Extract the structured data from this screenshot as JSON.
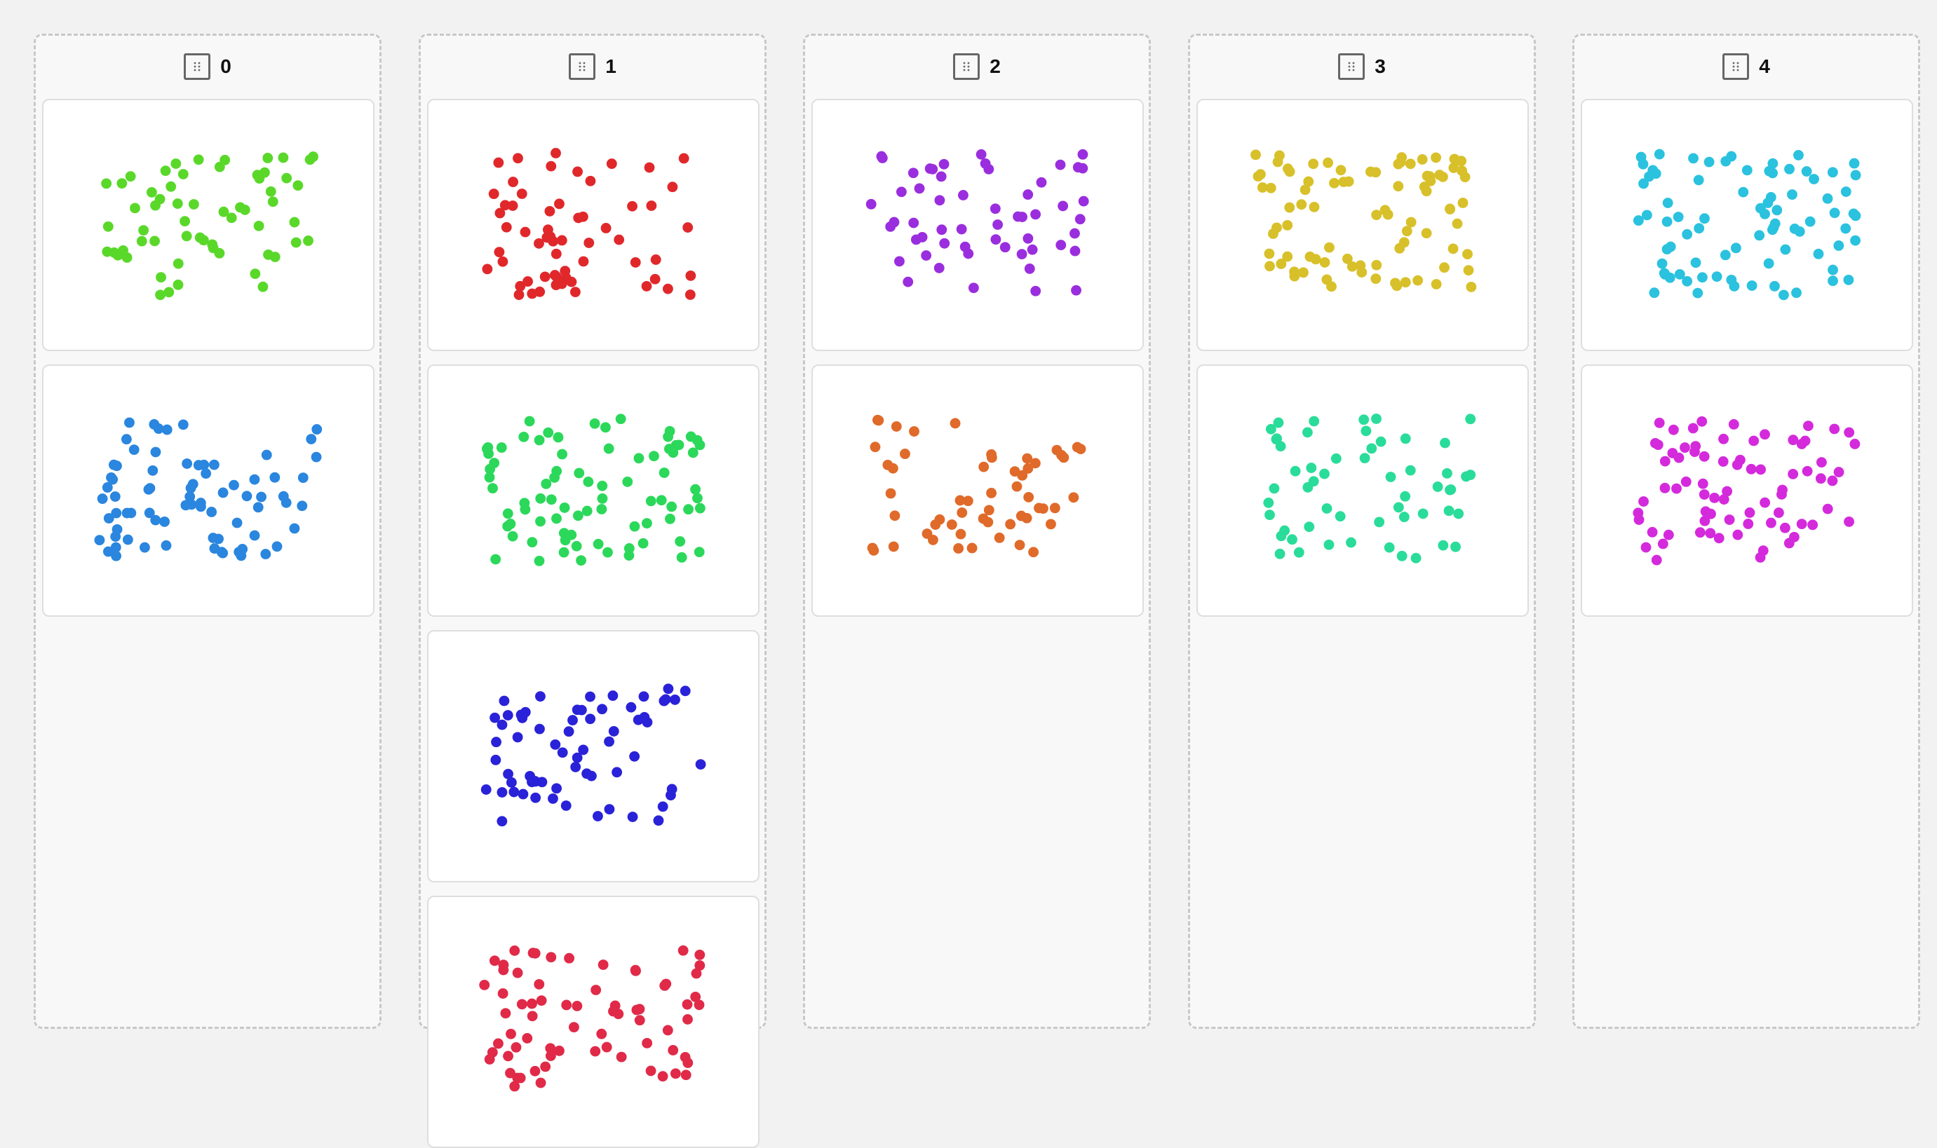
{
  "board": {
    "columns": [
      {
        "title": "0",
        "handle_icon": "drag-handle-icon",
        "cards": [
          {
            "color": "#5ad82a",
            "seed": 11,
            "count": 60
          },
          {
            "color": "#2a86de",
            "seed": 23,
            "count": 75
          }
        ]
      },
      {
        "title": "1",
        "handle_icon": "drag-handle-icon",
        "cards": [
          {
            "color": "#e0282b",
            "seed": 37,
            "count": 60
          },
          {
            "color": "#2bd85a",
            "seed": 41,
            "count": 80
          },
          {
            "color": "#2a22d8",
            "seed": 53,
            "count": 65
          },
          {
            "color": "#e02a48",
            "seed": 67,
            "count": 70
          }
        ]
      },
      {
        "title": "2",
        "handle_icon": "drag-handle-icon",
        "cards": [
          {
            "color": "#9a2ede",
            "seed": 71,
            "count": 55
          },
          {
            "color": "#e06a2a",
            "seed": 83,
            "count": 55
          }
        ]
      },
      {
        "title": "3",
        "handle_icon": "drag-handle-icon",
        "cards": [
          {
            "color": "#d8c02a",
            "seed": 97,
            "count": 85
          },
          {
            "color": "#2adc9a",
            "seed": 101,
            "count": 55
          }
        ]
      },
      {
        "title": "4",
        "handle_icon": "drag-handle-icon",
        "cards": [
          {
            "color": "#2ac2de",
            "seed": 113,
            "count": 80
          },
          {
            "color": "#d42adc",
            "seed": 127,
            "count": 75
          }
        ]
      }
    ]
  }
}
